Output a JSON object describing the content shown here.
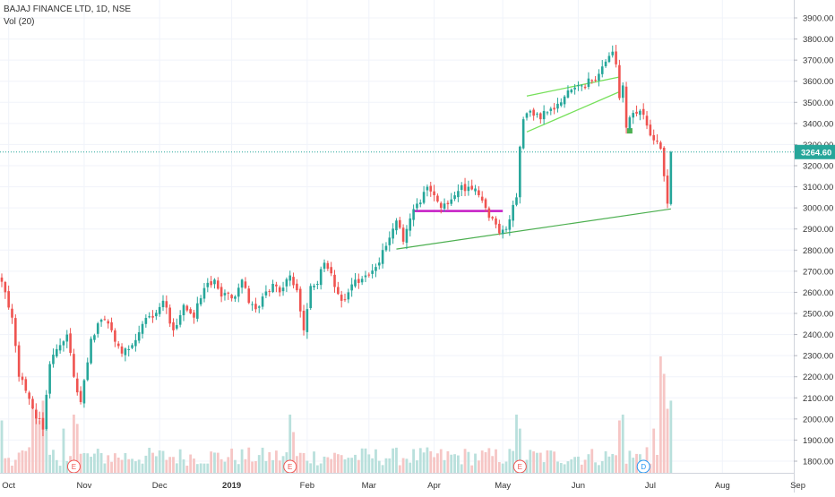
{
  "legend": {
    "symbol": "BAJAJ FINANCE LTD, 1D, NSE",
    "indicator": "Vol (20)"
  },
  "colors": {
    "up": "#26a69a",
    "down": "#ef5350",
    "volume_up": "#b9e0dc",
    "volume_down": "#f6c6c5",
    "price_line": "#26a69a",
    "price_label_bg": "#26a69a",
    "trend_green": "#4caf50",
    "channel_lime": "#76e05a",
    "support_magenta": "#c51bc4",
    "marker_stop": "#4caf50"
  },
  "chart_data": {
    "type": "candlestick",
    "symbol": "BAJAJ FINANCE LTD",
    "interval": "1D",
    "exchange": "NSE",
    "y_axis": {
      "ticks": [
        1800,
        1900,
        2000,
        2100,
        2200,
        2300,
        2400,
        2500,
        2600,
        2700,
        2800,
        2900,
        3000,
        3100,
        3200,
        3300,
        3400,
        3500,
        3600,
        3700,
        3800,
        3900
      ],
      "tick_labels": [
        "1800.00",
        "1900.00",
        "2000.00",
        "2100.00",
        "2200.00",
        "2300.00",
        "2400.00",
        "2500.00",
        "2600.00",
        "2700.00",
        "2800.00",
        "2900.00",
        "3000.00",
        "3100.00",
        "3200.00",
        "3300.00",
        "3400.00",
        "3500.00",
        "3600.00",
        "3700.00",
        "3800.00",
        "3900.00"
      ],
      "range": [
        1730,
        3990
      ]
    },
    "x_axis": {
      "labels": [
        "Oct",
        "Nov",
        "Dec",
        "2019",
        "Feb",
        "Mar",
        "Apr",
        "May",
        "Jun",
        "Jul",
        "Aug",
        "Sep"
      ],
      "label_bars": [
        2,
        24,
        46,
        67,
        89,
        107,
        126,
        146,
        168,
        189,
        210,
        232
      ]
    },
    "last_price": 3264.6,
    "last_price_label": "3264.60",
    "price_anchors": [
      [
        0,
        2650
      ],
      [
        3,
        2480
      ],
      [
        5,
        2200
      ],
      [
        9,
        2050
      ],
      [
        12,
        1950
      ],
      [
        14,
        2260
      ],
      [
        17,
        2350
      ],
      [
        19,
        2400
      ],
      [
        21,
        2200
      ],
      [
        23,
        2080
      ],
      [
        26,
        2380
      ],
      [
        29,
        2470
      ],
      [
        32,
        2420
      ],
      [
        35,
        2310
      ],
      [
        38,
        2350
      ],
      [
        41,
        2450
      ],
      [
        44,
        2480
      ],
      [
        47,
        2560
      ],
      [
        50,
        2420
      ],
      [
        53,
        2540
      ],
      [
        56,
        2480
      ],
      [
        59,
        2620
      ],
      [
        62,
        2660
      ],
      [
        64,
        2580
      ],
      [
        68,
        2580
      ],
      [
        70,
        2660
      ],
      [
        72,
        2550
      ],
      [
        74,
        2520
      ],
      [
        76,
        2580
      ],
      [
        79,
        2640
      ],
      [
        81,
        2600
      ],
      [
        84,
        2680
      ],
      [
        86,
        2610
      ],
      [
        88,
        2420
      ],
      [
        90,
        2630
      ],
      [
        92,
        2640
      ],
      [
        94,
        2740
      ],
      [
        96,
        2690
      ],
      [
        99,
        2560
      ],
      [
        101,
        2600
      ],
      [
        103,
        2660
      ],
      [
        106,
        2680
      ],
      [
        109,
        2720
      ],
      [
        112,
        2820
      ],
      [
        115,
        2940
      ],
      [
        117,
        2840
      ],
      [
        119,
        2950
      ],
      [
        121,
        3020
      ],
      [
        124,
        3100
      ],
      [
        126,
        3060
      ],
      [
        128,
        3000
      ],
      [
        131,
        3040
      ],
      [
        133,
        3080
      ],
      [
        136,
        3100
      ],
      [
        139,
        3060
      ],
      [
        141,
        3000
      ],
      [
        143,
        2950
      ],
      [
        145,
        2880
      ],
      [
        147,
        2900
      ],
      [
        150,
        3050
      ],
      [
        151,
        3290
      ],
      [
        152,
        3420
      ],
      [
        154,
        3460
      ],
      [
        157,
        3420
      ],
      [
        160,
        3470
      ],
      [
        163,
        3500
      ],
      [
        166,
        3560
      ],
      [
        169,
        3580
      ],
      [
        172,
        3600
      ],
      [
        175,
        3670
      ],
      [
        177,
        3720
      ],
      [
        178,
        3740
      ],
      [
        179,
        3680
      ],
      [
        180,
        3520
      ],
      [
        181,
        3580
      ],
      [
        182,
        3380
      ],
      [
        184,
        3450
      ],
      [
        186,
        3460
      ],
      [
        188,
        3390
      ],
      [
        190,
        3320
      ],
      [
        192,
        3280
      ],
      [
        193,
        3150
      ],
      [
        194,
        3020
      ],
      [
        195,
        3265
      ]
    ],
    "total_bars": 196,
    "volume": {
      "name": "Vol (20)",
      "max_level": 1,
      "high_volume_bars": {
        "0": 0.45,
        "9": 0.58,
        "10": 0.55,
        "11": 0.45,
        "12": 0.62,
        "13": 0.4,
        "18": 0.38,
        "21": 0.5,
        "22": 0.42,
        "84": 0.5,
        "85": 0.35,
        "150": 0.5,
        "151": 0.38,
        "180": 0.45,
        "181": 0.5,
        "188": 0.22,
        "190": 0.38,
        "192": 1.0,
        "193": 0.85,
        "194": 0.55,
        "195": 0.62
      }
    },
    "annotations": [
      {
        "type": "trendline",
        "label": "rising support",
        "from": [
          115,
          2805
        ],
        "to": [
          195,
          2995
        ],
        "color": "trend_green"
      },
      {
        "type": "horizontal",
        "label": "support level",
        "from": [
          120,
          2985
        ],
        "to": [
          146,
          2985
        ],
        "color": "support_magenta"
      },
      {
        "type": "channel",
        "upper_from": [
          153,
          3530
        ],
        "upper_to": [
          180,
          3620
        ],
        "lower_from": [
          153,
          3360
        ],
        "lower_to": [
          180,
          3550
        ],
        "color": "channel_lime"
      },
      {
        "type": "marker",
        "at": [
          183,
          3365
        ],
        "color": "marker_stop"
      }
    ],
    "events": [
      {
        "label": "E",
        "bar": 21,
        "kind": "earnings"
      },
      {
        "label": "E",
        "bar": 84,
        "kind": "earnings"
      },
      {
        "label": "E",
        "bar": 151,
        "kind": "earnings"
      },
      {
        "label": "D",
        "bar": 187,
        "kind": "dividend"
      }
    ]
  }
}
